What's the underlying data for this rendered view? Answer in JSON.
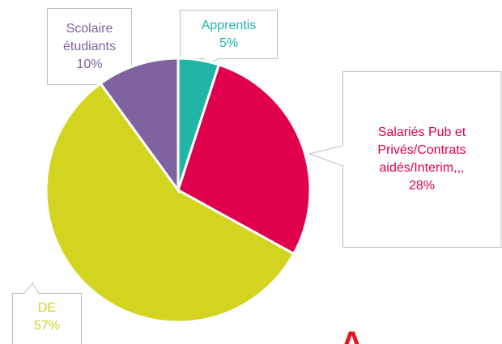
{
  "chart_data": {
    "type": "pie",
    "categories": [
      "Apprentis",
      "Salariés Pub et Privés/Contrats aidés/Interim,,,",
      "DE",
      "Scolaire étudiants"
    ],
    "values": [
      5,
      28,
      57,
      10
    ],
    "value_labels": [
      "5%",
      "28%",
      "57%",
      "10%"
    ],
    "colors": [
      "#22b5a7",
      "#e0004e",
      "#d3d41f",
      "#7f63a1"
    ],
    "annotation": "A"
  }
}
